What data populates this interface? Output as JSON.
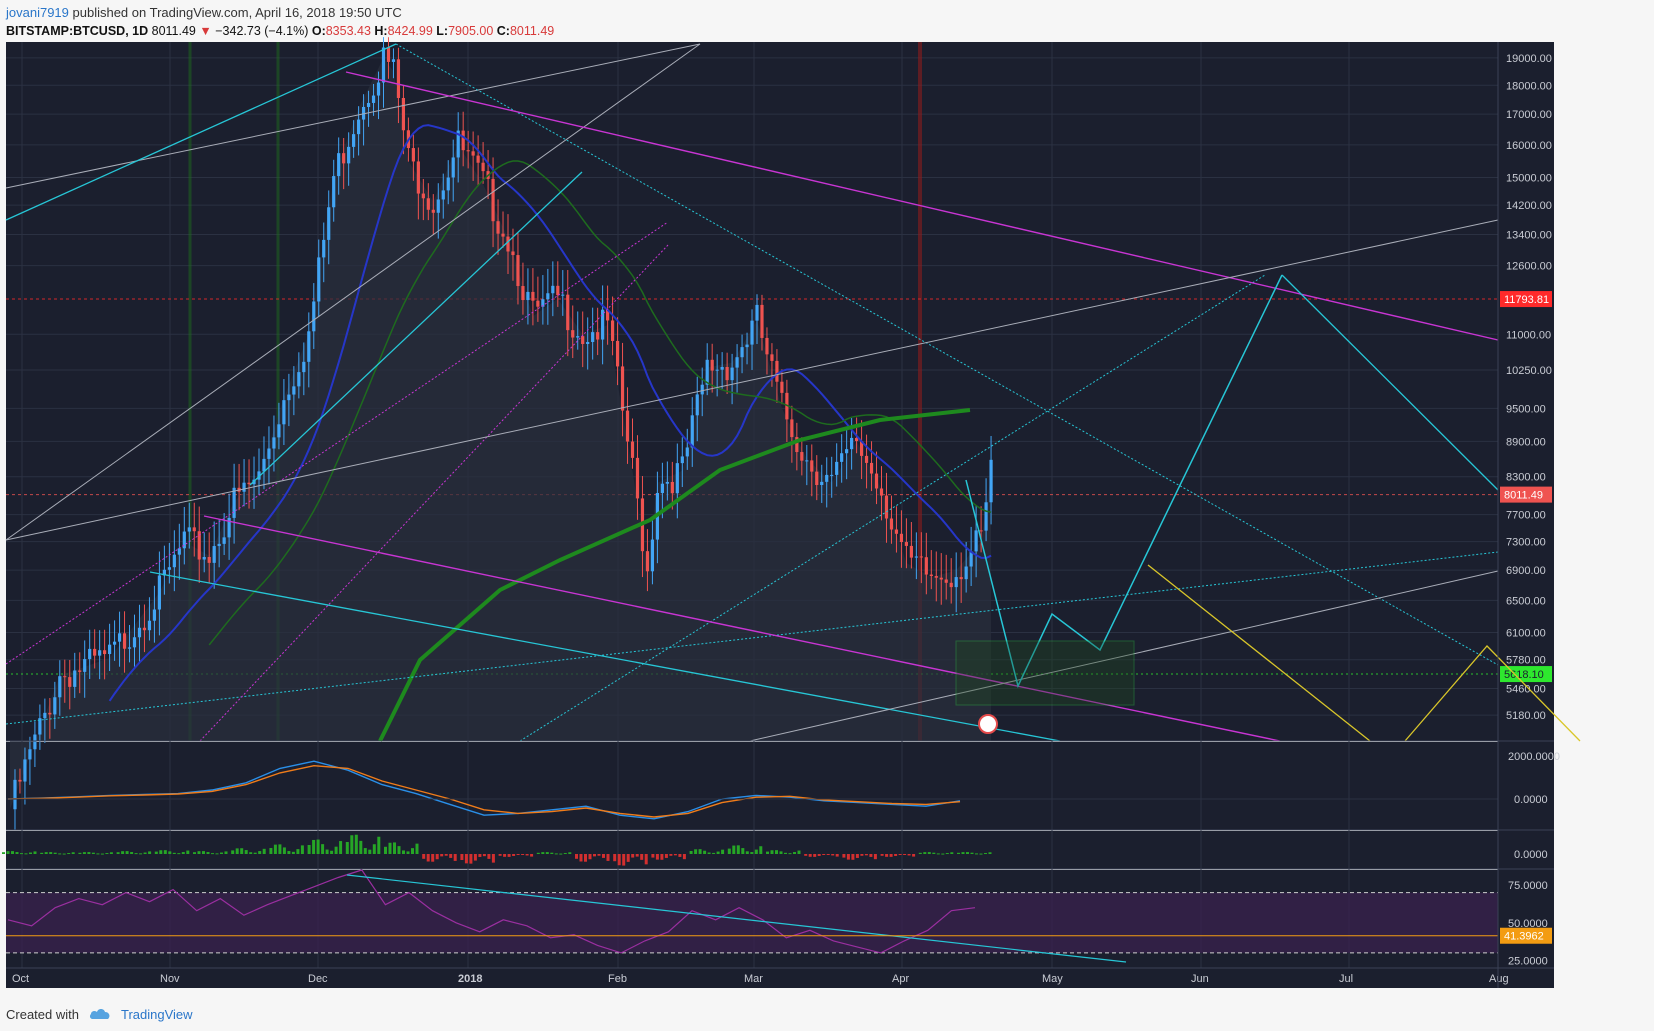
{
  "header": {
    "user": "jovani7919",
    "published": " published on TradingView.com, April 16, 2018 19:50 UTC",
    "symbol": "BITSTAMP:BTCUSD, 1D",
    "last": "8011.49",
    "change_arrow": "▼",
    "change": "−342.73 (−4.1%)",
    "o_label": "O:",
    "o": "8353.43",
    "h_label": "H:",
    "h": "8424.99",
    "l_label": "L:",
    "l": "7905.00",
    "c_label": "C:",
    "c": "8011.49"
  },
  "footer": {
    "created_with": "Created with",
    "brand": "TradingView",
    "cloud_icon": "tradingview-cloud-icon"
  },
  "colors": {
    "background": "#1b1f2e",
    "grid": "#2b3142",
    "up": "#42a5f5",
    "down": "#ef5350",
    "cyan": "#27c6d6",
    "magenta": "#c835d3",
    "gray_line": "#a9adb8",
    "green_ma": "#1e8a1e",
    "blue_ma": "#2636c8",
    "yellow": "#d9c62a",
    "macd": "#2a8fe8",
    "signal": "#f07c1a",
    "rsi": "#9a2fa0"
  },
  "chart_data": [
    {
      "type": "candlestick",
      "title": "",
      "symbol": "BITSTAMP:BTCUSD",
      "timeframe": "1D",
      "x_ticks": [
        "Oct",
        "Nov",
        "Dec",
        "2018",
        "Feb",
        "Mar",
        "Apr",
        "May",
        "Jun",
        "Jul",
        "Aug"
      ],
      "y_ticks": [
        "19000.00",
        "18000.00",
        "17000.00",
        "16000.00",
        "15000.00",
        "14200.00",
        "13400.00",
        "12600.00",
        "11000.00",
        "10250.00",
        "9500.00",
        "8900.00",
        "8300.00",
        "7700.00",
        "7300.00",
        "6900.00",
        "6500.00",
        "6100.00",
        "5780.00",
        "5460.00",
        "5180.00"
      ],
      "y_scale": "log",
      "ylim": [
        5000,
        19300
      ],
      "price_labels": [
        {
          "text": "11793.81",
          "value": 11793.81,
          "color": "#ff2a2a"
        },
        {
          "text": "8011.49",
          "value": 8011.49,
          "color": "#ef5350"
        },
        {
          "text": "5618.10",
          "value": 5618.1,
          "color": "#2ee82e"
        }
      ],
      "close_series_approx": {
        "x_days": [
          0,
          10,
          20,
          30,
          35,
          40,
          45,
          50,
          55,
          60,
          65,
          70,
          75,
          77,
          80,
          85,
          90,
          95,
          100,
          105,
          110,
          115,
          120,
          125,
          128,
          130,
          135,
          140,
          145,
          150,
          155,
          160,
          165,
          170,
          175,
          180,
          185,
          190,
          195,
          197,
          200
        ],
        "close": [
          4300,
          5600,
          5800,
          6600,
          7300,
          7100,
          7900,
          8300,
          9700,
          11000,
          15000,
          17200,
          19000,
          18500,
          15500,
          14300,
          16000,
          14800,
          13300,
          11400,
          11800,
          11000,
          11200,
          8400,
          6900,
          8200,
          8400,
          10300,
          10400,
          11300,
          9500,
          8600,
          8200,
          8900,
          8100,
          7000,
          6800,
          6900,
          7300,
          8350,
          8011
        ]
      }
    },
    {
      "type": "line",
      "title": "",
      "y_ticks": [
        "2000.0000",
        "0.0000"
      ],
      "series": [
        {
          "values": [
            0,
            50,
            120,
            200,
            250,
            300,
            500,
            900,
            1700,
            2100,
            1600,
            800,
            300,
            -300,
            -900,
            -800,
            -600,
            -400,
            -900,
            -1100,
            -700,
            0,
            200,
            100,
            -100,
            -200,
            -300,
            -400,
            -100
          ]
        },
        {
          "values": [
            0,
            40,
            100,
            180,
            220,
            280,
            420,
            800,
            1450,
            1850,
            1700,
            1000,
            500,
            0,
            -600,
            -800,
            -700,
            -500,
            -800,
            -1000,
            -800,
            -200,
            100,
            150,
            -50,
            -150,
            -250,
            -300,
            -150
          ]
        }
      ]
    },
    {
      "type": "bar",
      "title": "",
      "y_ticks": [
        "0.0000"
      ],
      "values": [
        0.3,
        0.2,
        0.2,
        0.3,
        0.4,
        0.3,
        0.6,
        1.0,
        1.5,
        2.0,
        1.2,
        -0.8,
        -1.0,
        -0.3,
        0.2,
        -0.8,
        -1.2,
        -0.6,
        0.5,
        0.9,
        0.4,
        -0.3,
        -0.6,
        -0.3,
        0.2,
        0.2
      ]
    },
    {
      "type": "line",
      "title": "",
      "y_ticks": [
        "75.0000",
        "50.0000",
        "25.0000"
      ],
      "ylim": [
        20,
        85
      ],
      "bands": [
        30,
        70
      ],
      "current_label": "41.3962",
      "series": [
        {
          "values": [
            52,
            48,
            60,
            66,
            62,
            70,
            64,
            72,
            58,
            66,
            55,
            62,
            68,
            74,
            80,
            85,
            62,
            70,
            58,
            50,
            44,
            52,
            48,
            40,
            42,
            35,
            30,
            38,
            44,
            58,
            52,
            60,
            52,
            40,
            45,
            38,
            34,
            30,
            38,
            45,
            58,
            60
          ]
        }
      ]
    }
  ]
}
